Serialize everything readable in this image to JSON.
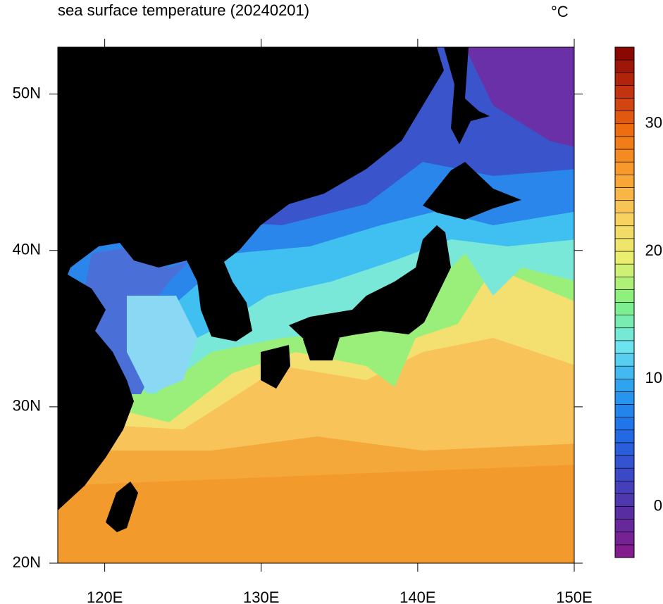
{
  "chart_data": {
    "type": "map",
    "title": "sea surface temperature (20240201)",
    "units": "°C",
    "xlim": [
      117,
      150
    ],
    "ylim": [
      20,
      53
    ],
    "xticks": [
      {
        "value": 120,
        "label": "120E"
      },
      {
        "value": 130,
        "label": "130E"
      },
      {
        "value": 140,
        "label": "140E"
      },
      {
        "value": 150,
        "label": "150E"
      }
    ],
    "yticks": [
      {
        "value": 20,
        "label": "20N"
      },
      {
        "value": 30,
        "label": "30N"
      },
      {
        "value": 40,
        "label": "40N"
      },
      {
        "value": 50,
        "label": "50N"
      }
    ],
    "clim": [
      -4,
      36
    ],
    "level_step": 1,
    "cticks": [
      0,
      10,
      20,
      30
    ],
    "colormap": [
      "#8a1a8a",
      "#5a2ca0",
      "#3a4ac8",
      "#1e6ee8",
      "#2aa0f0",
      "#70e8f0",
      "#80f080",
      "#e8f070",
      "#f8d060",
      "#f8a030",
      "#f07010",
      "#c03010",
      "#800000"
    ]
  }
}
